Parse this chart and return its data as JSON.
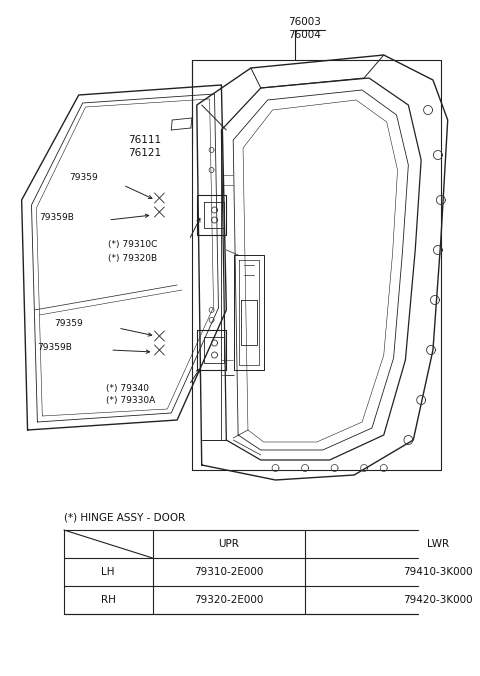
{
  "bg_color": "#ffffff",
  "table_title": "(*) HINGE ASSY - DOOR",
  "table_headers": [
    "",
    "UPR",
    "LWR"
  ],
  "table_rows": [
    [
      "LH",
      "79310-2E000",
      "79410-3K000"
    ],
    [
      "RH",
      "79320-2E000",
      "79420-3K000"
    ]
  ],
  "label_76003": "76003",
  "label_76004": "76004",
  "label_76111": "76111",
  "label_76121": "76121",
  "label_79359_u": "79359",
  "label_79359B_u": "79359B",
  "label_79310C": "(*) 79310C",
  "label_79320B": "(*) 79320B",
  "label_79359_l": "79359",
  "label_79359B_l": "79359B",
  "label_79340": "(*) 79340",
  "label_79330A": "(*) 79330A"
}
